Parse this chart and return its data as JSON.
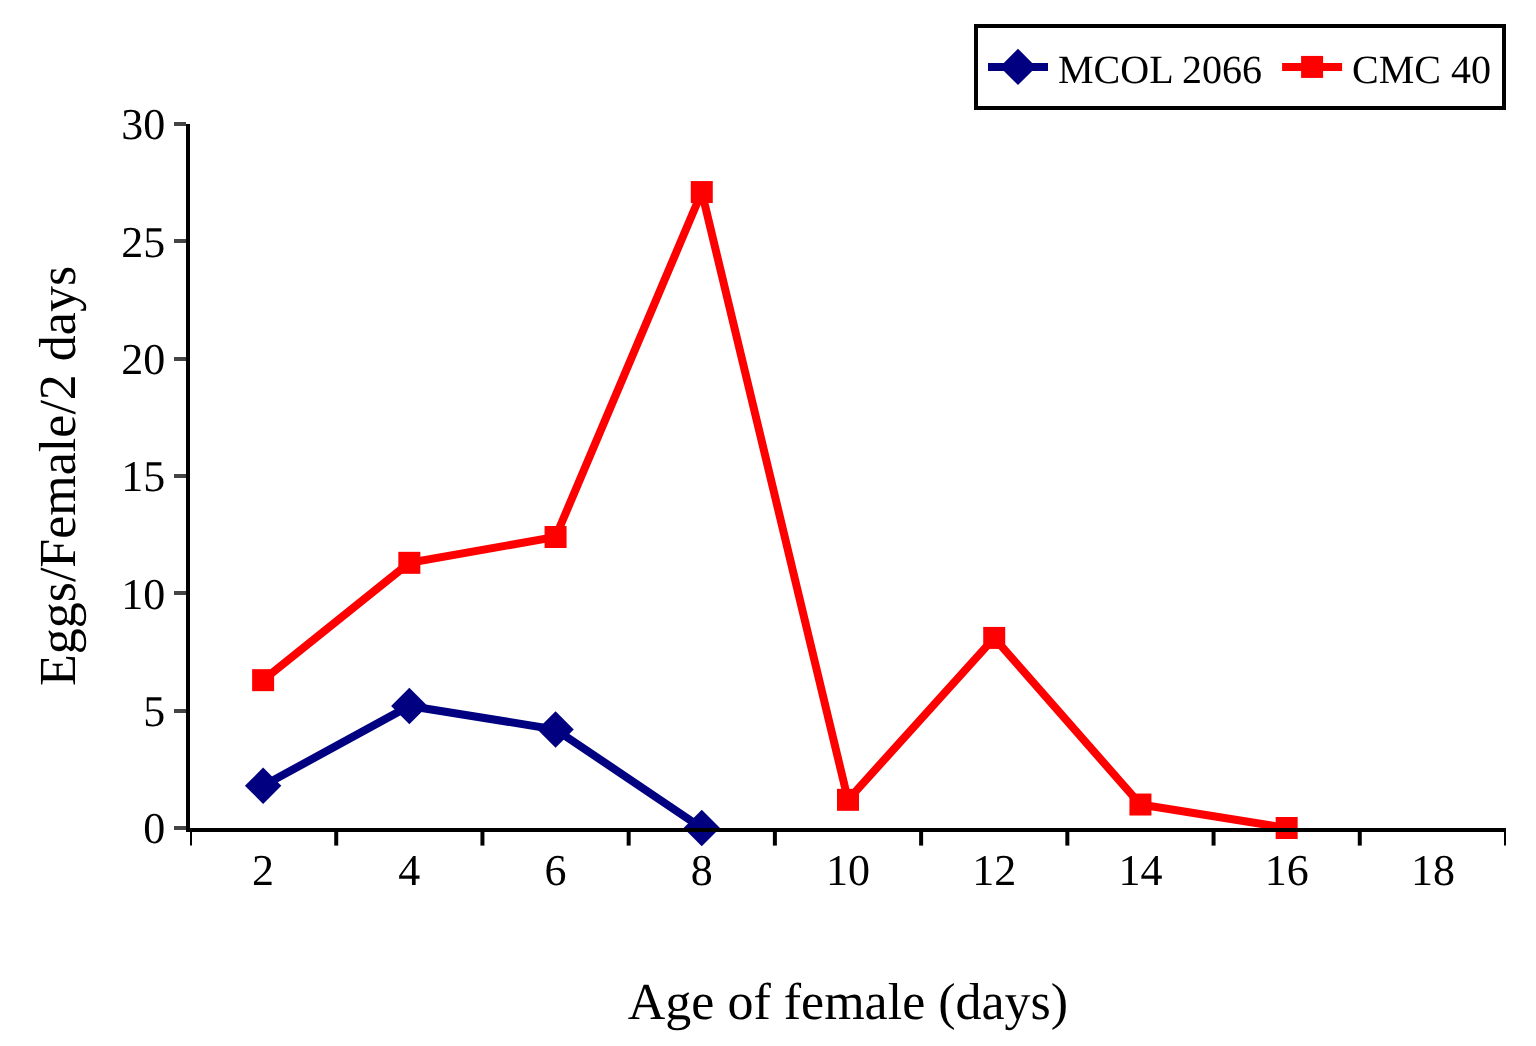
{
  "chart_data": {
    "type": "line",
    "xlabel": "Age of female (days)",
    "ylabel": "Eggs/Female/2 days",
    "categories": [
      "2",
      "4",
      "6",
      "8",
      "10",
      "12",
      "14",
      "16",
      "18"
    ],
    "series": [
      {
        "name": "MCOL 2066",
        "color": "#000080",
        "marker": "diamond",
        "values": [
          1.8,
          5.2,
          4.2,
          0,
          null,
          null,
          null,
          null,
          null
        ]
      },
      {
        "name": "CMC 40",
        "color": "#ff0000",
        "marker": "square",
        "values": [
          6.3,
          11.3,
          12.4,
          27.1,
          1.2,
          8.1,
          1.0,
          0,
          null
        ]
      }
    ],
    "ylim": [
      0,
      30
    ],
    "yticks": [
      0,
      5,
      10,
      15,
      20,
      25,
      30
    ],
    "legend": "top right",
    "line_style": "solid"
  }
}
